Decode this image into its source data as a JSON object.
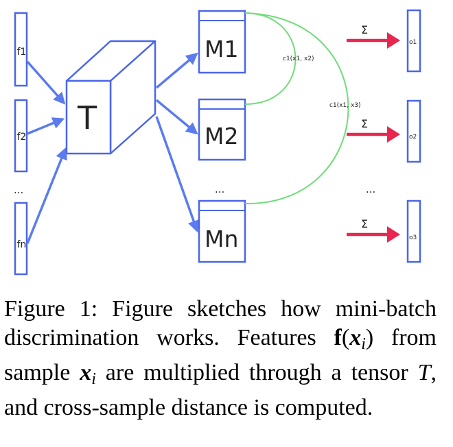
{
  "diagram": {
    "features": [
      "f1",
      "f2",
      "fn"
    ],
    "features_ellipsis": "...",
    "tensor_label": "T",
    "matrices": [
      "M1",
      "M2",
      "Mn"
    ],
    "matrices_ellipsis": "...",
    "sum_symbol": "Σ",
    "outputs": [
      "o1",
      "o2",
      "o3"
    ],
    "outputs_ellipsis": "...",
    "distance_labels": [
      "c1(x1, x2)",
      "c1(x1, x3)"
    ],
    "colors": {
      "arrow_blue": "#5b7bee",
      "box_blue": "#4a66e8",
      "link_green": "#6fdc78",
      "sum_arrow_red": "#e8264f"
    }
  },
  "caption": {
    "prefix": "Figure 1:  Figure sketches how mini-batch discrimination works.  Features ",
    "feature_symbol": "f",
    "paren_open": "(",
    "x_symbol": "x",
    "sub_i": "i",
    "paren_close": ")",
    "text_mid": " from sample ",
    "text_after_sample": " are multiplied through a tensor ",
    "tensor_symbol": "T",
    "suffix": ", and cross-sample distance is computed."
  }
}
